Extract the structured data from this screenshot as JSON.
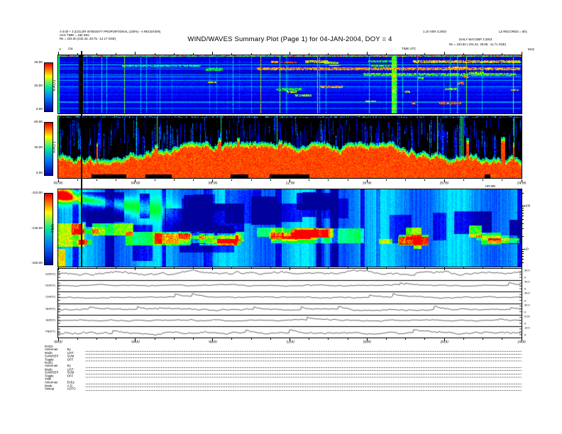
{
  "title": "WIND/WAVES Summary Plot (Page 1) for 04-JAN-2004, DOY = 4",
  "header": {
    "left_lines": [
      "A 0:00 + 3 [COLOR INTENSITY PROPORTIONAL (100%) - A RECEIVER]",
      "AVG TIME = 180 SEC",
      "Re =  234.00 (232.15, 28.75, -12.17 GSE)"
    ],
    "v_marker": "V",
    "cal_marker": "Cal",
    "right_line1a": "1.10 VER 3.2003",
    "right_line1b": "LZ RECORDS = 801",
    "right_line2": "DAILY W/O DBP 3.2003",
    "right_line3": "Re =  233.50 (-231.51, 28.85, -11.71 GSE)",
    "time_axis_label": "TIME UTC",
    "freq_unit_label": "MHz"
  },
  "panels": {
    "rad2": {
      "label": "RAD2",
      "colorbar_ticks": [
        "40.00",
        "20.00",
        "0.00"
      ]
    },
    "rad1": {
      "label": "RAD1",
      "colorbar_ticks": [
        "60.00",
        "30.00",
        "0.00"
      ]
    },
    "tnr": {
      "label": "TNR",
      "colorbar_ticks": [
        "-110.00",
        "-130.00",
        "-150.00"
      ],
      "right_ticks": [
        "100",
        "10"
      ]
    }
  },
  "time_axis": {
    "labels": [
      "00:00",
      "04:00",
      "08:00",
      "12:00",
      "16:00",
      "20:00",
      "24:00"
    ],
    "unit": "HR:MN"
  },
  "strips": {
    "labels": [
      "E(ADC)",
      "D(ADC)",
      "C(ADC)",
      "B(ADC)",
      "A(ADC)",
      "PB(FIT)"
    ],
    "right_ticks": [
      [
        "30.0",
        "0"
      ],
      [
        "30.0",
        "0"
      ],
      [
        "30.0",
        "0"
      ],
      [
        "30.0",
        "0"
      ],
      [
        "5.00",
        "0"
      ],
      [
        "10.0",
        "0"
      ]
    ],
    "bottom_labels": [
      "0000",
      "0400",
      "0800",
      "1200",
      "1600",
      "2000",
      "2400"
    ]
  },
  "legend": {
    "groups": [
      {
        "name": "RAD2",
        "rows": [
          {
            "k": "Antennas",
            "v": "Ey"
          },
          {
            "k": "Mode",
            "v": "LIST"
          },
          {
            "k": "SUM/SEP",
            "v": "SUM"
          },
          {
            "k": "Toggle",
            "v": "OFF"
          }
        ]
      },
      {
        "name": "RAD1",
        "rows": [
          {
            "k": "Antennas",
            "v": "Ey"
          },
          {
            "k": "Mode",
            "v": "LIST"
          },
          {
            "k": "SUM/SEP",
            "v": "SUM"
          },
          {
            "k": "Toggle",
            "v": "OFF"
          }
        ]
      },
      {
        "name": "TNR",
        "rows": [
          {
            "k": "Antennas",
            "v": "ExEy"
          },
          {
            "k": "Mode",
            "v": "A,D"
          },
          {
            "k": "Sweep",
            "v": "AUTO"
          }
        ]
      }
    ]
  },
  "colors": {
    "background": "#ffffff",
    "colormap": [
      "#0000a8",
      "#0077ff",
      "#00e8a0",
      "#ffff00",
      "#ff2a00"
    ],
    "rad1_background": "#000000"
  },
  "chart_data": [
    {
      "type": "heatmap",
      "panel": "RAD2",
      "title": "WIND/WAVES Summary Plot (Page 1) for 04-JAN-2004, DOY = 4",
      "colorbar_label_values": [
        40.0,
        20.0,
        0.0
      ],
      "colorbar_range": [
        0,
        40
      ],
      "y_unit_label": "MHz",
      "x_ticks": [
        "00:00",
        "04:00",
        "08:00",
        "12:00",
        "16:00",
        "20:00",
        "24:00"
      ],
      "x_range_hours": [
        0,
        24
      ],
      "description": "Radio spectrogram: blue banded background with sporadic bright vertical streaks and red/yellow horizontal burst segments, black calibration gap near 01:15"
    },
    {
      "type": "heatmap",
      "panel": "RAD1",
      "colorbar_label_values": [
        60.0,
        30.0,
        0.0
      ],
      "colorbar_range": [
        0,
        60
      ],
      "x_range_hours": [
        0,
        24
      ],
      "description": "Radio spectrogram: black background with faint blue vertical streaks above an intense jagged red emission band (yellow/green fringe) filling the lower half all day"
    },
    {
      "type": "heatmap",
      "panel": "TNR",
      "colorbar_label_values": [
        -110.0,
        -130.0,
        -150.0
      ],
      "colorbar_range": [
        -150,
        -110
      ],
      "right_axis_ticks_kHz": [
        100,
        10
      ],
      "right_axis_scale": "log",
      "x_range_hours": [
        0,
        24
      ],
      "description": "Thermal noise receiver spectrogram: cyan background, dark blue patches in upper half, red/orange drifting feature at 00:00-01:30 near top, bright yellow-green plasma line band through the middle"
    },
    {
      "type": "line",
      "panels": [
        "E(ADC)",
        "D(ADC)",
        "C(ADC)",
        "B(ADC)",
        "A(ADC)",
        "PB(FIT)"
      ],
      "y_ranges": [
        [
          0,
          30
        ],
        [
          0,
          30
        ],
        [
          0,
          30
        ],
        [
          0,
          30
        ],
        [
          0,
          5
        ],
        [
          0,
          10
        ]
      ],
      "x_ticks": [
        "0000",
        "0400",
        "0800",
        "1200",
        "1600",
        "2000",
        "2400"
      ],
      "x_range_hours": [
        0,
        24
      ],
      "description": "Six noisy housekeeping/level time-series strips, roughly flat lines with small fluctuations"
    }
  ]
}
